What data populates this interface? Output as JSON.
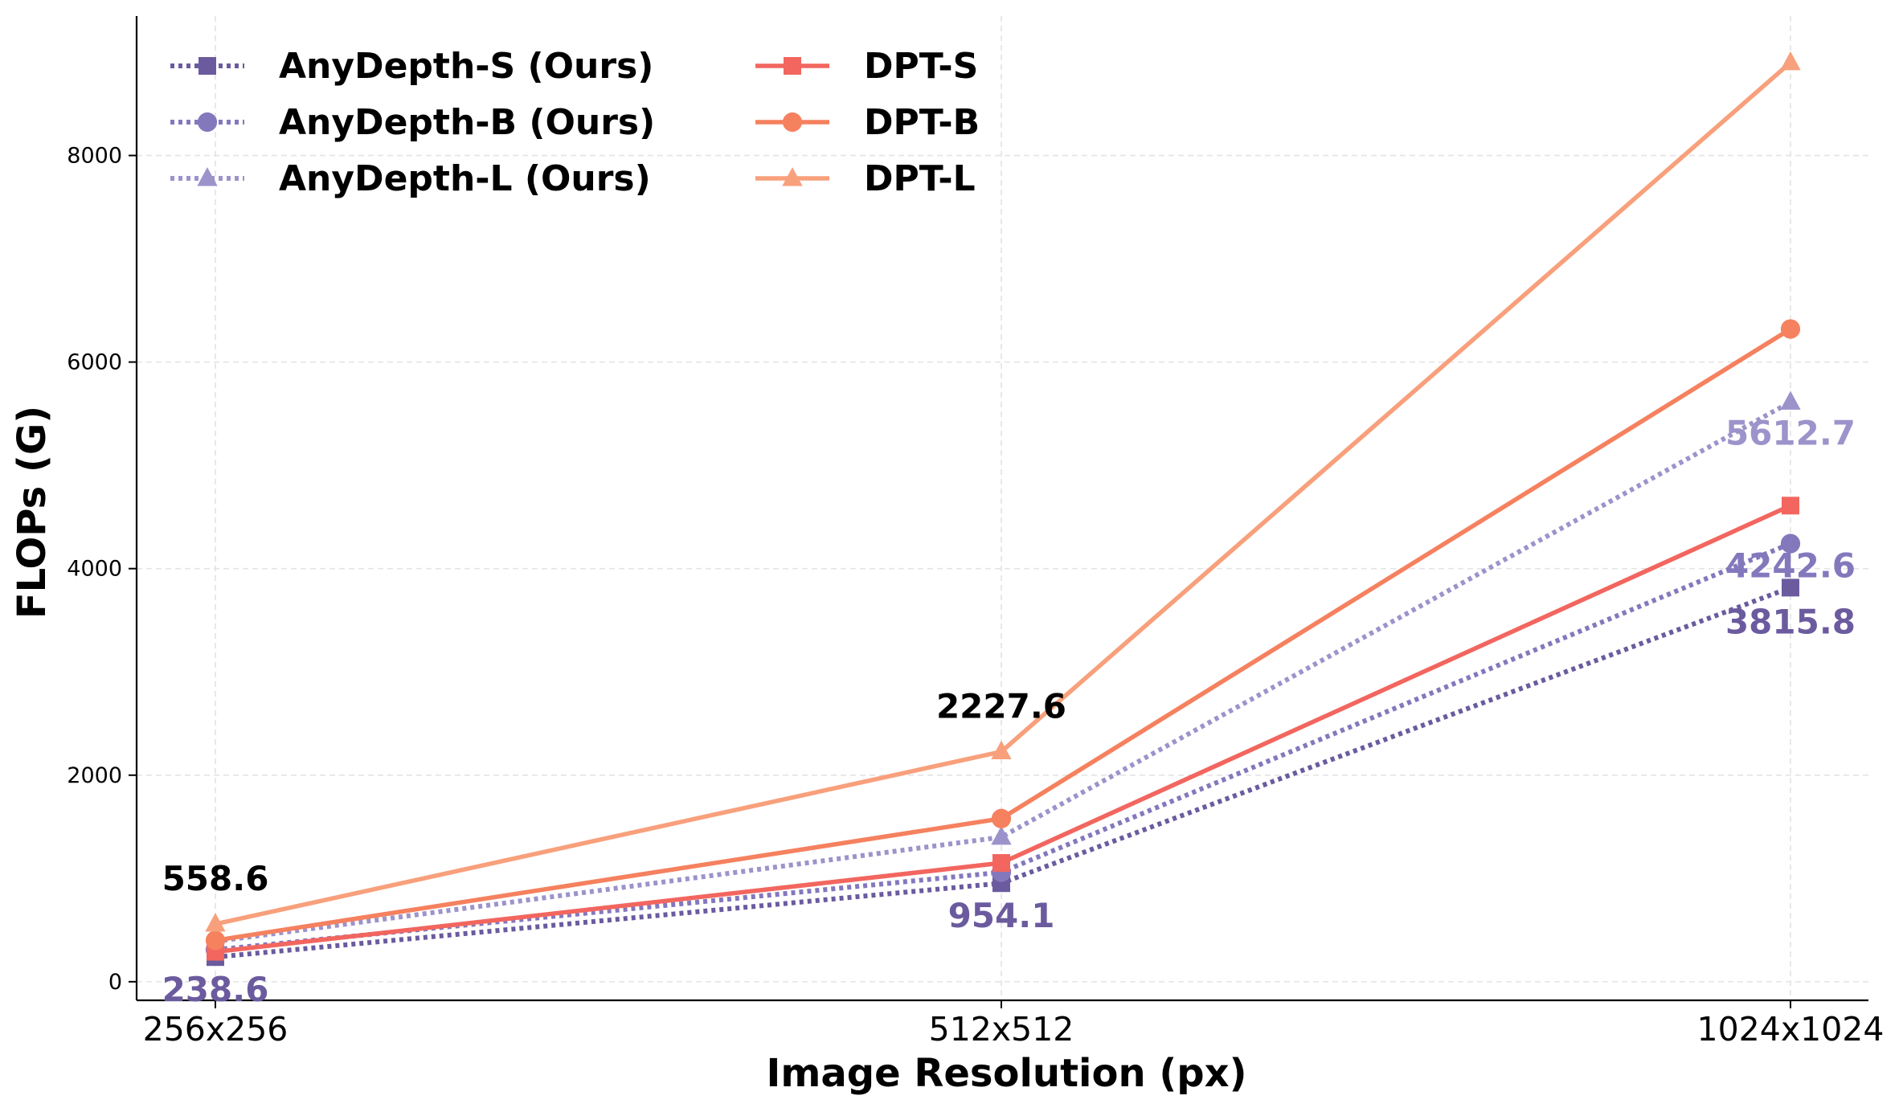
{
  "chart_data": {
    "type": "line",
    "title": "",
    "xlabel": "Image Resolution (px)",
    "ylabel": "FLOPs (G)",
    "categories": [
      "256x256",
      "512x512",
      "1024x1024"
    ],
    "ylim": [
      -180,
      9350
    ],
    "yticks": [
      0,
      2000,
      4000,
      6000,
      8000
    ],
    "grid": true,
    "legend_position": "top-left",
    "series": [
      {
        "name": "AnyDepth-S (Ours)",
        "values": [
          238.6,
          954.1,
          3815.8
        ],
        "color": "#6b5b9e",
        "marker": "square",
        "linestyle": "dotted"
      },
      {
        "name": "AnyDepth-B (Ours)",
        "values": [
          310,
          1060,
          4242.6
        ],
        "color": "#8478bd",
        "marker": "circle",
        "linestyle": "dotted"
      },
      {
        "name": "AnyDepth-L (Ours)",
        "values": [
          390,
          1400,
          5612.7
        ],
        "color": "#9d93cb",
        "marker": "triangle",
        "linestyle": "dotted"
      },
      {
        "name": "DPT-S",
        "values": [
          290,
          1150,
          4610
        ],
        "color": "#f2665f",
        "marker": "square",
        "linestyle": "solid"
      },
      {
        "name": "DPT-B",
        "values": [
          400,
          1580,
          6320
        ],
        "color": "#f5815f",
        "marker": "circle",
        "linestyle": "solid"
      },
      {
        "name": "DPT-L",
        "values": [
          558.6,
          2227.6,
          8900
        ],
        "color": "#f8a07c",
        "marker": "triangle",
        "linestyle": "solid"
      }
    ],
    "annotations": [
      {
        "text": "558.6",
        "category": "256x256",
        "value": 558.6,
        "color": "#000000",
        "position": "above"
      },
      {
        "text": "238.6",
        "category": "256x256",
        "value": 238.6,
        "color": "#6b5b9e",
        "position": "below"
      },
      {
        "text": "2227.6",
        "category": "512x512",
        "value": 2227.6,
        "color": "#000000",
        "position": "above"
      },
      {
        "text": "954.1",
        "category": "512x512",
        "value": 954.1,
        "color": "#6b5b9e",
        "position": "below"
      },
      {
        "text": "5612.7",
        "category": "1024x1024",
        "value": 5612.7,
        "color": "#9d93cb",
        "position": "below"
      },
      {
        "text": "4242.6",
        "category": "1024x1024",
        "value": 4242.6,
        "color": "#8478bd",
        "position": "below"
      },
      {
        "text": "3815.8",
        "category": "1024x1024",
        "value": 3815.8,
        "color": "#6b5b9e",
        "position": "below"
      }
    ]
  }
}
